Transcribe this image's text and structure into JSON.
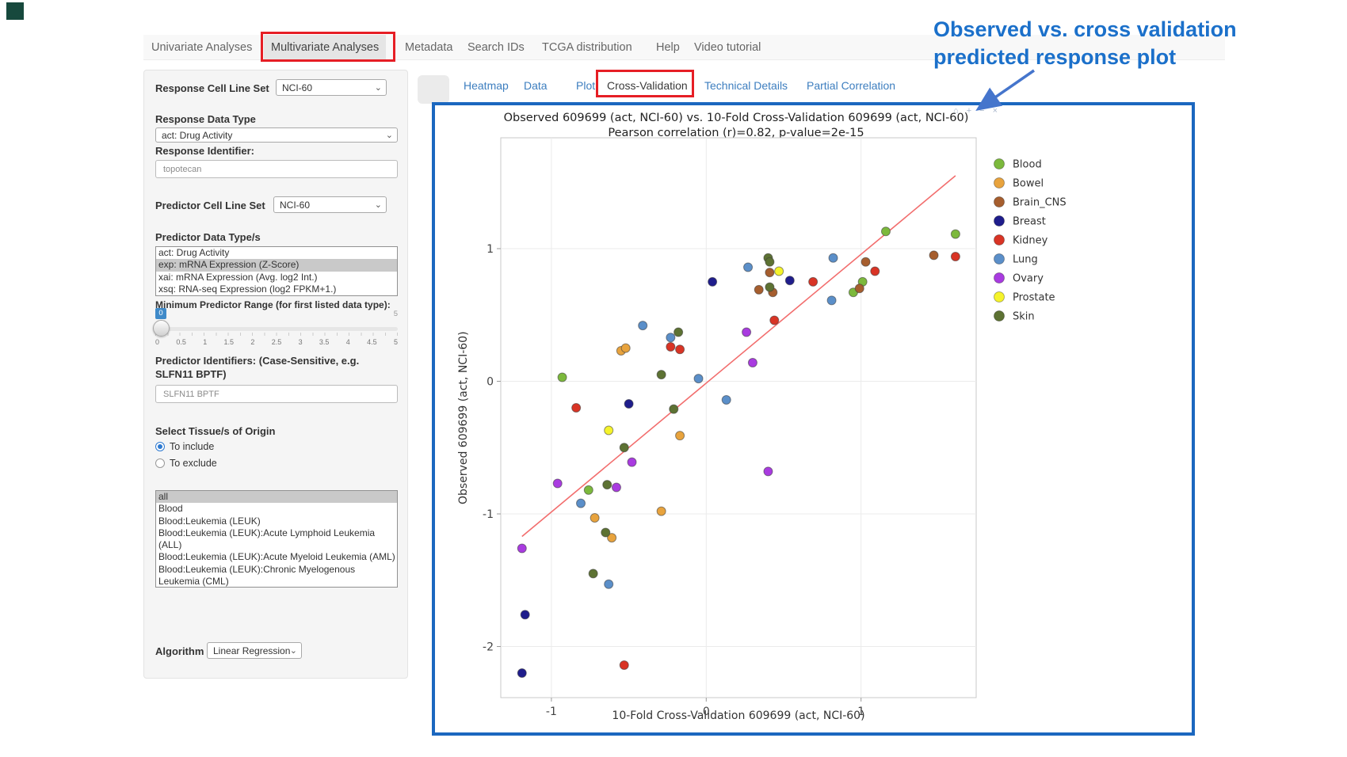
{
  "nav": {
    "items": [
      {
        "label": "Univariate Analyses"
      },
      {
        "label": "Multivariate Analyses"
      },
      {
        "label": "Metadata"
      },
      {
        "label": "Search IDs"
      },
      {
        "label": "TCGA distribution"
      },
      {
        "label": "Help"
      },
      {
        "label": "Video tutorial"
      }
    ],
    "active": "Multivariate Analyses"
  },
  "icons": {
    "chevron_down": "⌄",
    "modebar": [
      "⌂",
      "+",
      "−",
      "×"
    ]
  },
  "sidebar": {
    "response_cell_line_set": {
      "label": "Response Cell Line Set",
      "value": "NCI-60"
    },
    "response_data_type": {
      "label": "Response Data Type",
      "value": "act: Drug Activity"
    },
    "response_identifier": {
      "label": "Response Identifier:",
      "value": "topotecan"
    },
    "predictor_cell_line_set": {
      "label": "Predictor Cell Line Set",
      "value": "NCI-60"
    },
    "predictor_data_types": {
      "label": "Predictor Data Type/s",
      "options": [
        "act: Drug Activity",
        "exp: mRNA Expression (Z-Score)",
        "xai: mRNA Expression (Avg. log2 Int.)",
        "xsq: RNA-seq Expression (log2 FPKM+1.)"
      ],
      "selected": "exp: mRNA Expression (Z-Score)"
    },
    "min_predictor_range": {
      "label": "Minimum Predictor Range (for first listed data type):",
      "value": "0",
      "min": "0",
      "max": "5",
      "ticks": [
        "0",
        "0.5",
        "1",
        "1.5",
        "2",
        "2.5",
        "3",
        "3.5",
        "4",
        "4.5",
        "5"
      ]
    },
    "predictor_identifiers": {
      "label": "Predictor Identifiers: (Case-Sensitive, e.g. SLFN11 BPTF)",
      "value": "SLFN11 BPTF"
    },
    "tissue_origin": {
      "label": "Select Tissue/s of Origin",
      "include_label": "To include",
      "exclude_label": "To exclude",
      "selected_mode": "To include",
      "options": [
        "all",
        "Blood",
        "Blood:Leukemia (LEUK)",
        "Blood:Leukemia (LEUK):Acute Lymphoid Leukemia (ALL)",
        "Blood:Leukemia (LEUK):Acute Myeloid Leukemia (AML)",
        "Blood:Leukemia (LEUK):Chronic Myelogenous Leukemia (CML)"
      ],
      "selected_option": "all"
    },
    "algorithm": {
      "label": "Algorithm",
      "value": "Linear Regression"
    }
  },
  "subtabs": {
    "items": [
      {
        "label": "Heatmap"
      },
      {
        "label": "Data"
      },
      {
        "label": "Plot"
      },
      {
        "label": "Cross-Validation"
      },
      {
        "label": "Technical Details"
      },
      {
        "label": "Partial Correlation"
      }
    ],
    "active": "Cross-Validation"
  },
  "annotation": {
    "line1": "Observed vs. cross validation",
    "line2": "predicted response plot",
    "color": "#1b70ca"
  },
  "highlight_colors": {
    "red_box": "#e61e25",
    "blue_box": "#1b67bf"
  },
  "chart_data": {
    "type": "scatter",
    "title": "Observed 609699 (act, NCI-60) vs. 10-Fold Cross-Validation 609699 (act, NCI-60)",
    "subtitle": "Pearson correlation (r)=0.82, p-value=2e-15",
    "xlabel": "10-Fold Cross-Validation 609699 (act, NCI-60)",
    "ylabel": "Observed 609699 (act, NCI-60)",
    "xlim": [
      -1.33,
      1.74
    ],
    "ylim": [
      -2.38,
      1.84
    ],
    "x_ticks": [
      -1,
      0,
      1
    ],
    "y_ticks": [
      1,
      0,
      -1,
      -2
    ],
    "grid": true,
    "legend_position": "right",
    "trend_line": {
      "x1": -1.19,
      "y1": -1.17,
      "x2": 1.61,
      "y2": 1.55,
      "color": "#f26d6d"
    },
    "series": [
      {
        "name": "Blood",
        "color": "#7cb93c",
        "points": [
          [
            -0.93,
            0.03
          ],
          [
            -0.76,
            -0.82
          ],
          [
            0.95,
            0.67
          ],
          [
            1.01,
            0.75
          ],
          [
            1.16,
            1.13
          ],
          [
            1.61,
            1.11
          ]
        ]
      },
      {
        "name": "Bowel",
        "color": "#e8a33d",
        "points": [
          [
            -0.55,
            0.23
          ],
          [
            -0.52,
            0.25
          ],
          [
            -0.17,
            -0.41
          ],
          [
            -0.29,
            -0.98
          ],
          [
            -0.72,
            -1.03
          ],
          [
            -0.61,
            -1.18
          ]
        ]
      },
      {
        "name": "Brain_CNS",
        "color": "#a65e2e",
        "points": [
          [
            0.34,
            0.69
          ],
          [
            0.41,
            0.82
          ],
          [
            0.43,
            0.67
          ],
          [
            0.99,
            0.7
          ],
          [
            1.03,
            0.9
          ],
          [
            1.47,
            0.95
          ]
        ]
      },
      {
        "name": "Breast",
        "color": "#1f1d8c",
        "points": [
          [
            0.04,
            0.75
          ],
          [
            0.54,
            0.76
          ],
          [
            -0.5,
            -0.17
          ],
          [
            -1.17,
            -1.76
          ],
          [
            -1.19,
            -2.2
          ]
        ]
      },
      {
        "name": "Kidney",
        "color": "#d93425",
        "points": [
          [
            -0.84,
            -0.2
          ],
          [
            -0.23,
            0.26
          ],
          [
            -0.17,
            0.24
          ],
          [
            0.44,
            0.46
          ],
          [
            0.69,
            0.75
          ],
          [
            1.09,
            0.83
          ],
          [
            1.61,
            0.94
          ],
          [
            -0.53,
            -2.14
          ]
        ]
      },
      {
        "name": "Lung",
        "color": "#5b8fc9",
        "points": [
          [
            -0.81,
            -0.92
          ],
          [
            -0.63,
            -1.53
          ],
          [
            -0.41,
            0.42
          ],
          [
            -0.23,
            0.33
          ],
          [
            -0.05,
            0.02
          ],
          [
            0.13,
            -0.14
          ],
          [
            0.27,
            0.86
          ],
          [
            0.81,
            0.61
          ],
          [
            0.82,
            0.93
          ]
        ]
      },
      {
        "name": "Ovary",
        "color": "#a93be0",
        "points": [
          [
            -1.19,
            -1.26
          ],
          [
            -0.96,
            -0.77
          ],
          [
            -0.58,
            -0.8
          ],
          [
            -0.48,
            -0.61
          ],
          [
            0.26,
            0.37
          ],
          [
            0.3,
            0.14
          ],
          [
            0.4,
            -0.68
          ]
        ]
      },
      {
        "name": "Prostate",
        "color": "#f5f32b",
        "points": [
          [
            -0.63,
            -0.37
          ],
          [
            0.47,
            0.83
          ]
        ]
      },
      {
        "name": "Skin",
        "color": "#5d7233",
        "points": [
          [
            -0.73,
            -1.45
          ],
          [
            -0.65,
            -1.14
          ],
          [
            -0.64,
            -0.78
          ],
          [
            -0.53,
            -0.5
          ],
          [
            -0.29,
            0.05
          ],
          [
            -0.21,
            -0.21
          ],
          [
            -0.18,
            0.37
          ],
          [
            0.4,
            0.93
          ],
          [
            0.41,
            0.9
          ],
          [
            0.41,
            0.71
          ]
        ]
      }
    ]
  }
}
